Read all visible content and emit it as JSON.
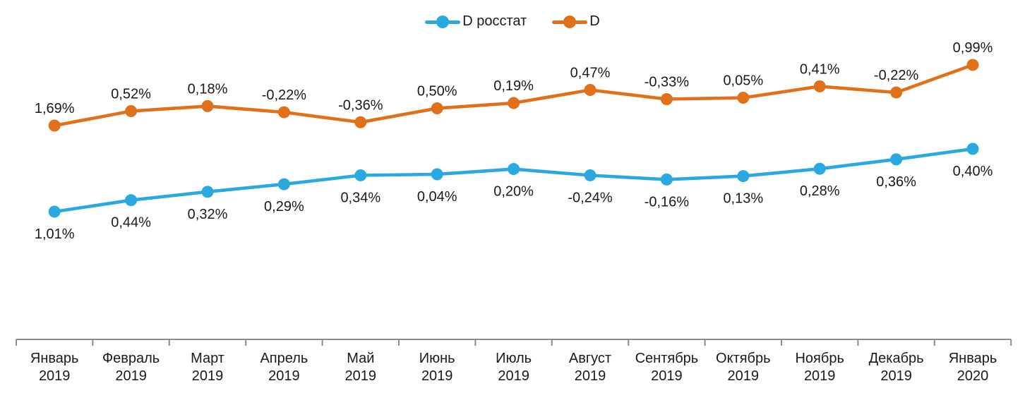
{
  "chart_data": {
    "type": "line",
    "title": "",
    "categories": [
      "Январь 2019",
      "Февраль 2019",
      "Март 2019",
      "Апрель 2019",
      "Май 2019",
      "Июнь 2019",
      "Июль 2019",
      "Август 2019",
      "Сентябрь 2019",
      "Октябрь 2019",
      "Ноябрь 2019",
      "Декабрь 2019",
      "Январь 2020"
    ],
    "series": [
      {
        "name": "D росстат",
        "color": "#29A9E0",
        "values": [
          1.01,
          0.44,
          0.32,
          0.29,
          0.34,
          0.04,
          0.2,
          -0.24,
          -0.16,
          0.13,
          0.28,
          0.36,
          0.4
        ],
        "labels": [
          "1,01%",
          "0,44%",
          "0,32%",
          "0,29%",
          "0,34%",
          "0,04%",
          "0,20%",
          "-0,24%",
          "-0,16%",
          "0,13%",
          "0,28%",
          "0,36%",
          "0,40%"
        ],
        "label_position": "below"
      },
      {
        "name": "D",
        "color": "#E1701A",
        "values": [
          1.69,
          0.52,
          0.18,
          -0.22,
          -0.36,
          0.5,
          0.19,
          0.47,
          -0.33,
          0.05,
          0.41,
          -0.22,
          0.99
        ],
        "labels": [
          "1,69%",
          "0,52%",
          "0,18%",
          "-0,22%",
          "-0,36%",
          "0,50%",
          "0,19%",
          "0,47%",
          "-0,33%",
          "0,05%",
          "0,41%",
          "-0,22%",
          "0,99%"
        ],
        "label_position": "above"
      }
    ],
    "line_heights_plotted_as": "cumulative_sum_of_values",
    "legend_position": "top",
    "grid": false,
    "y_axis_visible": false,
    "axis_color": "#8C8C8C",
    "text_color": "#1a1a1a"
  }
}
